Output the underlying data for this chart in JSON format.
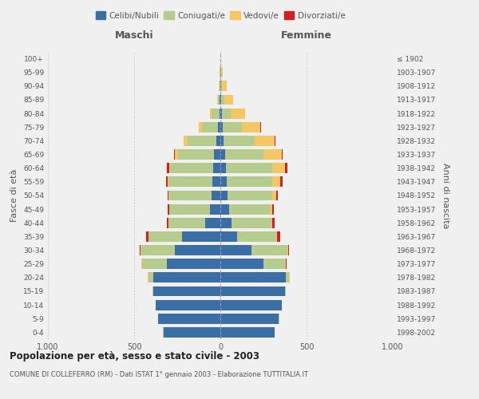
{
  "age_groups_bottom_to_top": [
    "0-4",
    "5-9",
    "10-14",
    "15-19",
    "20-24",
    "25-29",
    "30-34",
    "35-39",
    "40-44",
    "45-49",
    "50-54",
    "55-59",
    "60-64",
    "65-69",
    "70-74",
    "75-79",
    "80-84",
    "85-89",
    "90-94",
    "95-99",
    "100+"
  ],
  "birth_years_bottom_to_top": [
    "1998-2002",
    "1993-1997",
    "1988-1992",
    "1983-1987",
    "1978-1982",
    "1973-1977",
    "1968-1972",
    "1963-1967",
    "1958-1962",
    "1953-1957",
    "1948-1952",
    "1943-1947",
    "1938-1942",
    "1933-1937",
    "1928-1932",
    "1923-1927",
    "1918-1922",
    "1913-1917",
    "1908-1912",
    "1903-1907",
    "≤ 1902"
  ],
  "males": {
    "celibi": [
      330,
      360,
      375,
      390,
      390,
      310,
      265,
      220,
      90,
      60,
      50,
      45,
      40,
      35,
      25,
      12,
      5,
      4,
      2,
      2,
      1
    ],
    "coniugati": [
      2,
      2,
      2,
      5,
      28,
      145,
      195,
      195,
      210,
      235,
      245,
      255,
      250,
      210,
      165,
      95,
      45,
      12,
      4,
      2,
      0
    ],
    "vedovi": [
      0,
      0,
      0,
      0,
      3,
      2,
      2,
      2,
      2,
      2,
      4,
      5,
      8,
      18,
      22,
      18,
      8,
      4,
      1,
      0,
      0
    ],
    "divorziati": [
      0,
      0,
      0,
      0,
      2,
      2,
      5,
      15,
      8,
      8,
      8,
      10,
      10,
      5,
      2,
      0,
      0,
      0,
      0,
      0,
      0
    ]
  },
  "females": {
    "nubili": [
      315,
      340,
      355,
      375,
      378,
      248,
      180,
      95,
      65,
      50,
      42,
      38,
      32,
      28,
      18,
      12,
      8,
      4,
      3,
      2,
      1
    ],
    "coniugate": [
      2,
      2,
      2,
      5,
      22,
      128,
      210,
      228,
      230,
      238,
      258,
      262,
      268,
      222,
      182,
      112,
      50,
      18,
      6,
      2,
      0
    ],
    "vedove": [
      0,
      0,
      0,
      0,
      2,
      2,
      2,
      4,
      6,
      12,
      22,
      45,
      75,
      105,
      115,
      108,
      85,
      52,
      28,
      8,
      1
    ],
    "divorziate": [
      0,
      0,
      0,
      0,
      2,
      4,
      8,
      20,
      14,
      9,
      12,
      14,
      14,
      4,
      5,
      4,
      2,
      0,
      0,
      0,
      0
    ]
  },
  "colors": {
    "celibi": "#3a6ea5",
    "coniugati": "#b5cc8e",
    "vedovi": "#f5c764",
    "divorziati": "#cc2222"
  },
  "legend_labels": [
    "Celibi/Nubili",
    "Coniugati/e",
    "Vedovi/e",
    "Divorziati/e"
  ],
  "title": "Popolazione per età, sesso e stato civile - 2003",
  "subtitle": "COMUNE DI COLLEFERRO (RM) - Dati ISTAT 1° gennaio 2003 - Elaborazione TUTTITALIA.IT",
  "xlabel_left": "Maschi",
  "xlabel_right": "Femmine",
  "ylabel_left": "Fasce di età",
  "ylabel_right": "Anni di nascita",
  "xlim": 1000,
  "bg_color": "#f0f0f0"
}
